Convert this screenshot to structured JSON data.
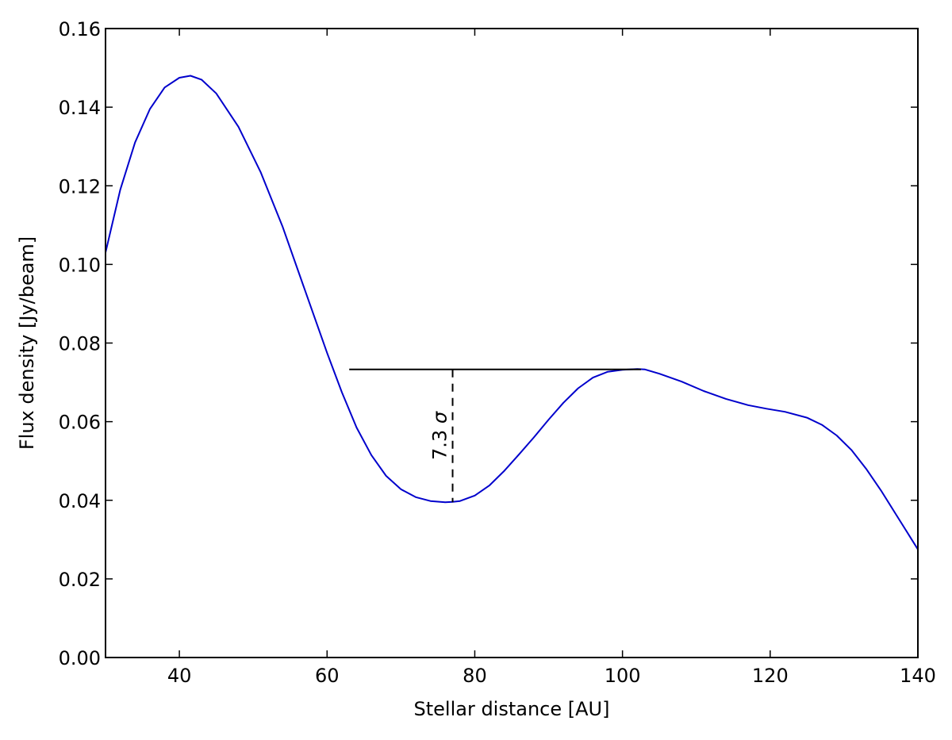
{
  "chart_data": {
    "type": "line",
    "title": "",
    "xlabel": "Stellar distance [AU]",
    "ylabel": "Flux density [Jy/beam]",
    "xlim": [
      30,
      140
    ],
    "ylim": [
      0.0,
      0.16
    ],
    "x_ticks": [
      "40",
      "60",
      "80",
      "100",
      "120",
      "140"
    ],
    "y_ticks": [
      "0.00",
      "0.02",
      "0.04",
      "0.06",
      "0.08",
      "0.10",
      "0.12",
      "0.14",
      "0.16"
    ],
    "grid": false,
    "legend": "none",
    "series": [
      {
        "color": "#0000cc",
        "x": [
          30,
          32,
          34,
          36,
          38,
          40,
          41.5,
          43,
          45,
          48,
          51,
          54,
          57,
          60,
          62,
          64,
          66,
          68,
          70,
          72,
          74,
          76,
          77,
          78,
          80,
          82,
          84,
          86,
          88,
          90,
          92,
          94,
          96,
          98,
          100,
          102,
          103,
          105,
          108,
          111,
          114,
          117,
          119.5,
          122,
          125,
          127,
          129,
          131,
          133,
          135,
          137,
          139,
          140
        ],
        "y": [
          0.103,
          0.119,
          0.131,
          0.1395,
          0.145,
          0.1475,
          0.148,
          0.147,
          0.1435,
          0.135,
          0.1235,
          0.1095,
          0.0935,
          0.0775,
          0.0675,
          0.0585,
          0.0515,
          0.0462,
          0.0428,
          0.0408,
          0.0398,
          0.0395,
          0.0396,
          0.0398,
          0.0412,
          0.0438,
          0.0475,
          0.0517,
          0.056,
          0.0605,
          0.0648,
          0.0685,
          0.0712,
          0.0727,
          0.0732,
          0.0734,
          0.0733,
          0.0722,
          0.0702,
          0.0678,
          0.0658,
          0.0642,
          0.0633,
          0.0625,
          0.061,
          0.0592,
          0.0565,
          0.0528,
          0.048,
          0.0425,
          0.0365,
          0.0305,
          0.0275
        ]
      }
    ],
    "annotations": [
      {
        "type": "hline",
        "x_start": 63,
        "x_end": 102.5,
        "y": 0.0733,
        "color": "#000000",
        "style": "solid"
      },
      {
        "type": "vline",
        "x": 77,
        "y_start": 0.0395,
        "y_end": 0.0733,
        "color": "#000000",
        "style": "dashed"
      },
      {
        "type": "text",
        "text": "7.3",
        "symbol": "σ",
        "x": 77,
        "y": 0.0564,
        "rotation": -90
      }
    ]
  }
}
